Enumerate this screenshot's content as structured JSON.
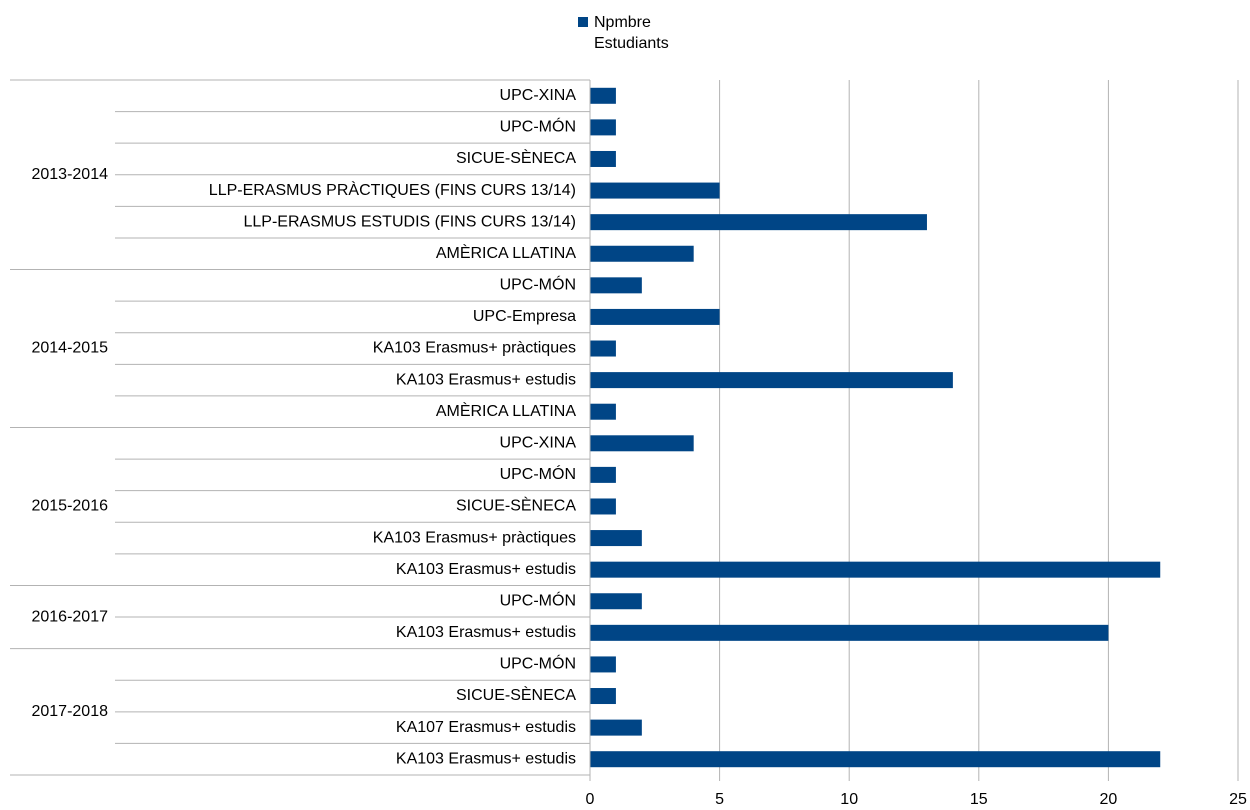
{
  "chart_data": {
    "type": "bar",
    "orientation": "horizontal",
    "series_name": "Npmbre Estudiants",
    "color": "#004586",
    "xlim": [
      0,
      25
    ],
    "xticks": [
      0,
      5,
      10,
      15,
      20,
      25
    ],
    "grid": true,
    "groups": [
      {
        "name": "2013-2014",
        "categories": [
          "UPC-XINA",
          "UPC-MÓN",
          "SICUE-SÈNECA",
          "LLP-ERASMUS PRÀCTIQUES (FINS CURS 13/14)",
          "LLP-ERASMUS ESTUDIS (FINS CURS 13/14)",
          "AMÈRICA LLATINA"
        ],
        "values": [
          1,
          1,
          1,
          5,
          13,
          4
        ]
      },
      {
        "name": "2014-2015",
        "categories": [
          "UPC-MÓN",
          "UPC-Empresa",
          "KA103 Erasmus+ pràctiques",
          "KA103 Erasmus+ estudis",
          "AMÈRICA LLATINA"
        ],
        "values": [
          2,
          5,
          1,
          14,
          1
        ]
      },
      {
        "name": "2015-2016",
        "categories": [
          "UPC-XINA",
          "UPC-MÓN",
          "SICUE-SÈNECA",
          "KA103 Erasmus+ pràctiques",
          "KA103 Erasmus+ estudis"
        ],
        "values": [
          4,
          1,
          1,
          2,
          22
        ]
      },
      {
        "name": "2016-2017",
        "categories": [
          "UPC-MÓN",
          "KA103 Erasmus+ estudis"
        ],
        "values": [
          2,
          20
        ]
      },
      {
        "name": "2017-2018",
        "categories": [
          "UPC-MÓN",
          "SICUE-SÈNECA",
          "KA107 Erasmus+ estudis",
          "KA103 Erasmus+ estudis"
        ],
        "values": [
          1,
          1,
          2,
          22
        ]
      }
    ]
  }
}
